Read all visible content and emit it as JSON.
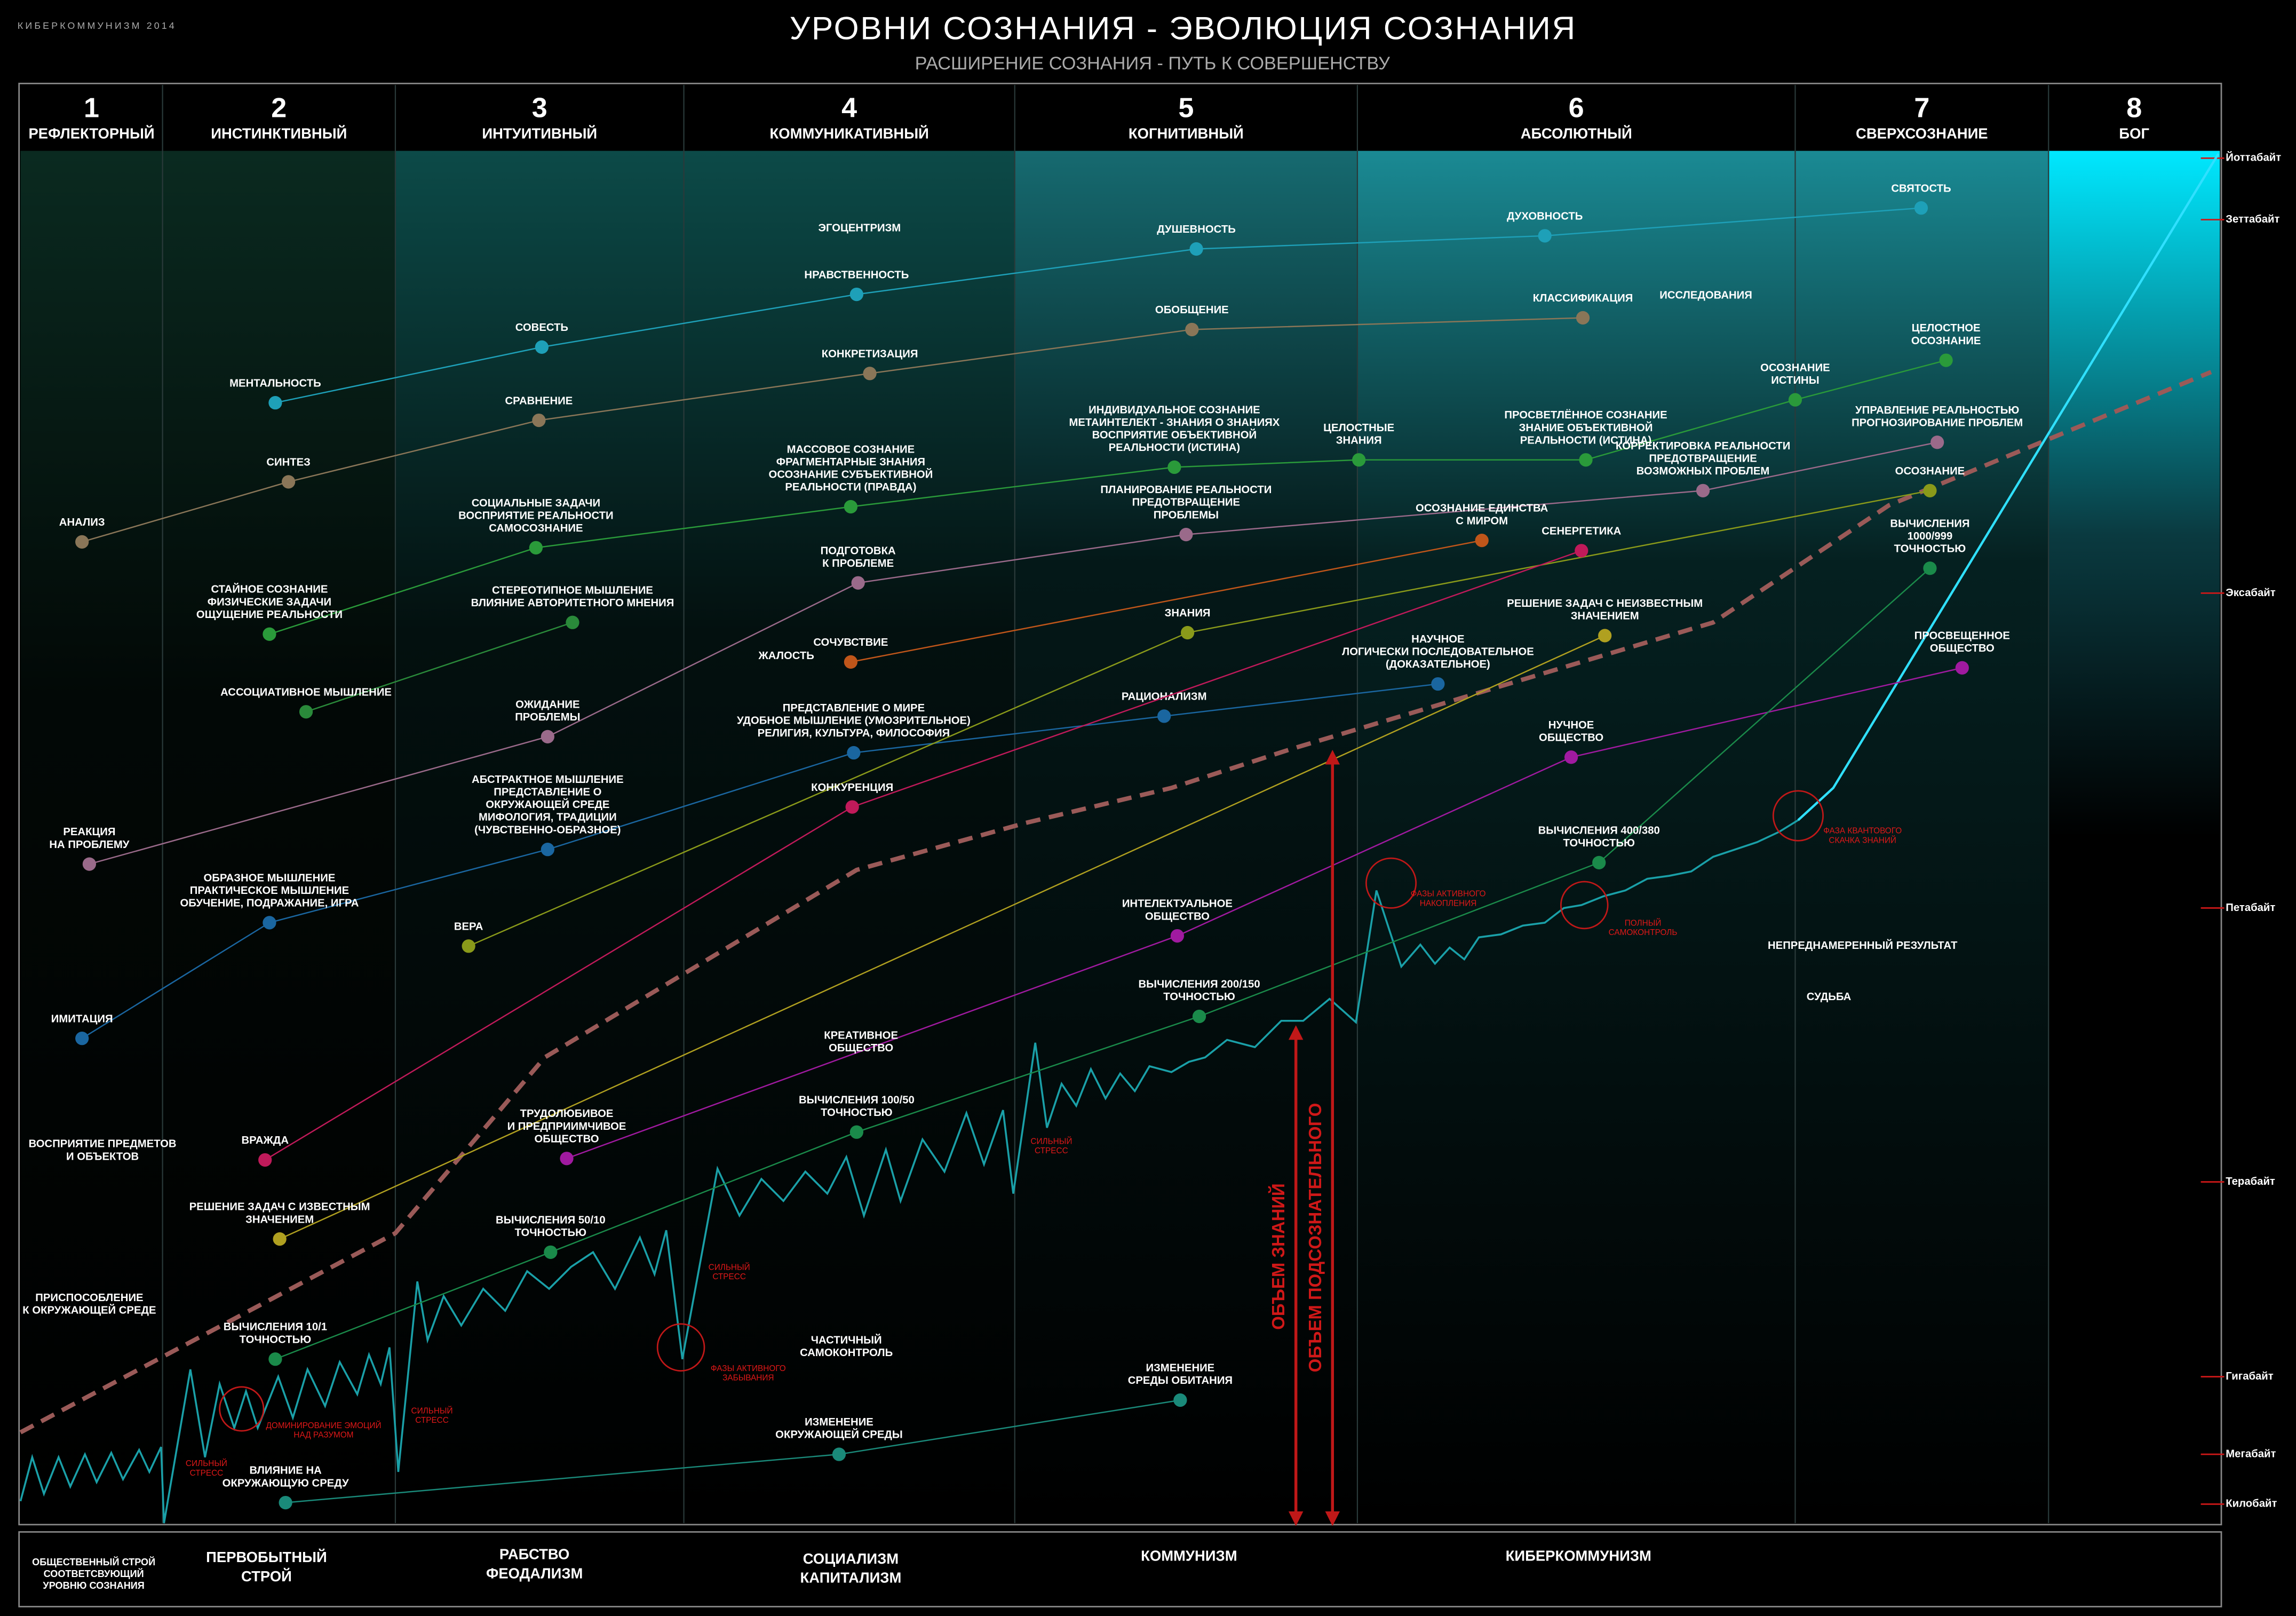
{
  "header": {
    "brand": "КИБЕРКОММУНИЗМ 2014",
    "title": "УРОВНИ СОЗНАНИЯ - ЭВОЛЮЦИЯ СОЗНАНИЯ",
    "subtitle": "РАСШИРЕНИЕ СОЗНАНИЯ - ПУТЬ К СОВЕРШЕНСТВУ"
  },
  "levels": [
    {
      "number": "1",
      "name": "РЕФЛЕКТОРНЫЙ"
    },
    {
      "number": "2",
      "name": "ИНСТИНКТИВНЫЙ"
    },
    {
      "number": "3",
      "name": "ИНТУИТИВНЫЙ"
    },
    {
      "number": "4",
      "name": "КОММУНИКАТИВНЫЙ"
    },
    {
      "number": "5",
      "name": "КОГНИТИВНЫЙ"
    },
    {
      "number": "6",
      "name": "АБСОЛЮТНЫЙ"
    },
    {
      "number": "7",
      "name": "СВЕРХСОЗНАНИЕ"
    },
    {
      "number": "8",
      "name": "БОГ"
    }
  ],
  "scale": [
    "Йоттабайт",
    "Зеттабайт",
    "Эксабайт",
    "Петабайт",
    "Терабайт",
    "Гигабайт",
    "Мегабайт",
    "Килобайт"
  ],
  "chains": [
    {
      "color": "#1ea0b8",
      "nodes": [
        {
          "label": [
            "МЕНТАЛЬНОСТЬ"
          ]
        },
        {
          "label": [
            "СОВЕСТЬ"
          ]
        },
        {
          "label": [
            "НРАВСТВЕННОСТЬ"
          ]
        },
        {
          "label": [
            "ДУШЕВНОСТЬ"
          ]
        },
        {
          "label": [
            "ДУХОВНОСТЬ"
          ]
        },
        {
          "label": [
            "СВЯТОСТЬ"
          ]
        }
      ]
    },
    {
      "color": "#8a7658",
      "nodes": [
        {
          "label": [
            "АНАЛИЗ"
          ]
        },
        {
          "label": [
            "СИНТЕЗ"
          ]
        },
        {
          "label": [
            "СРАВНЕНИЕ"
          ]
        },
        {
          "label": [
            "КОНКРЕТИЗАЦИЯ"
          ]
        },
        {
          "label": [
            "ОБОБЩЕНИЕ"
          ]
        },
        {
          "label": [
            "КЛАССИФИКАЦИЯ"
          ]
        }
      ]
    },
    {
      "color": "#2a9a3a",
      "nodes": [
        {
          "label": [
            "СТАЙНОЕ СОЗНАНИЕ",
            "ФИЗИЧЕСКИЕ ЗАДАЧИ",
            "ОЩУЩЕНИЕ РЕАЛЬНОСТИ"
          ]
        },
        {
          "label": [
            "СОЦИАЛЬНЫЕ ЗАДАЧИ",
            "ВОСПРИЯТИЕ РЕАЛЬНОСТИ",
            "САМОСОЗНАНИЕ"
          ]
        },
        {
          "label": [
            "МАССОВОЕ СОЗНАНИЕ",
            "ФРАГМЕНТАРНЫЕ ЗНАНИЯ",
            "ОСОЗНАНИЕ СУБЪЕКТИВНОЙ",
            "РЕАЛЬНОСТИ (ПРАВДА)"
          ]
        },
        {
          "label": [
            "ИНДИВИДУАЛЬНОЕ СОЗНАНИЕ",
            "МЕТАИНТЕЛЕКТ - ЗНАНИЯ О ЗНАНИЯХ",
            "ВОСПРИЯТИЕ ОБЪЕКТИВНОЙ",
            "РЕАЛЬНОСТИ (ИСТИНА)"
          ]
        },
        {
          "label": [
            "ЦЕЛОСТНЫЕ",
            "ЗНАНИЯ"
          ]
        },
        {
          "label": [
            "ПРОСВЕТЛЁННОЕ СОЗНАНИЕ",
            "ЗНАНИЕ ОБЪЕКТИВНОЙ",
            "РЕАЛЬНОСТИ (ИСТИНА)"
          ]
        },
        {
          "label": [
            "ОСОЗНАНИЕ",
            "ИСТИНЫ"
          ]
        },
        {
          "label": [
            "ЦЕЛОСТНОЕ",
            "ОСОЗНАНИЕ"
          ]
        }
      ]
    },
    {
      "color": "#2a8a3a",
      "nodes": [
        {
          "label": [
            "АССОЦИАТИВНОЕ МЫШЛЕНИЕ"
          ]
        },
        {
          "label": [
            "СТЕРЕОТИПНОЕ  МЫШЛЕНИЕ",
            "ВЛИЯНИЕ АВТОРИТЕТНОГО МНЕНИЯ"
          ]
        }
      ]
    },
    {
      "color": "#9a6a8a",
      "nodes": [
        {
          "label": [
            "РЕАКЦИЯ",
            "НА ПРОБЛЕМУ"
          ]
        },
        {
          "label": [
            "ОЖИДАНИЕ",
            "ПРОБЛЕМЫ"
          ]
        },
        {
          "label": [
            "ПОДГОТОВКА",
            "К ПРОБЛЕМЕ"
          ]
        },
        {
          "label": [
            "ПЛАНИРОВАНИЕ РЕАЛЬНОСТИ",
            "ПРЕДОТВРАЩЕНИЕ",
            "ПРОБЛЕМЫ"
          ]
        },
        {
          "label": [
            "КОРРЕКТИРОВКА РЕАЛЬНОСТИ",
            "ПРЕДОТВРАЩЕНИЕ",
            "ВОЗМОЖНЫХ ПРОБЛЕМ"
          ]
        },
        {
          "label": [
            "УПРАВЛЕНИЕ РЕАЛЬНОСТЬЮ",
            "ПРОГНОЗИРОВАНИЕ ПРОБЛЕМ"
          ]
        }
      ]
    },
    {
      "color": "#c0561a",
      "nodes": [
        {
          "label": [
            "СОЧУВСТВИЕ"
          ]
        },
        {
          "label": [
            "ОСОЗНАНИЕ ЕДИНСТВА",
            "С МИРОМ"
          ]
        }
      ]
    },
    {
      "color": "#1a66a0",
      "nodes": [
        {
          "label": [
            "ИМИТАЦИЯ"
          ]
        },
        {
          "label": [
            "ОБРАЗНОЕ МЫШЛЕНИЕ",
            "ПРАКТИЧЕСКОЕ МЫШЛЕНИЕ",
            "ОБУЧЕНИЕ, ПОДРАЖАНИЕ, ИГРА"
          ]
        },
        {
          "label": [
            "АБСТРАКТНОЕ МЫШЛЕНИЕ",
            "ПРЕДСТАВЛЕНИЕ О",
            "ОКРУЖАЮЩЕЙ СРЕДЕ",
            "МИФОЛОГИЯ, ТРАДИЦИИ",
            "(ЧУВСТВЕННО-ОБРАЗНОЕ)"
          ]
        },
        {
          "label": [
            "ПРЕДСТАВЛЕНИЕ О МИРЕ",
            "УДОБНОЕ МЫШЛЕНИЕ (УМОЗРИТЕЛЬНОЕ)",
            "РЕЛИГИЯ, КУЛЬТУРА, ФИЛОСОФИЯ"
          ]
        },
        {
          "label": [
            "РАЦИОНАЛИЗМ"
          ]
        },
        {
          "label": [
            "НАУЧНОЕ",
            "ЛОГИЧЕСКИ ПОСЛЕДОВАТЕЛЬНОЕ",
            "(ДОКАЗАТЕЛЬНОЕ)"
          ]
        }
      ]
    },
    {
      "color": "#8a9a1a",
      "nodes": [
        {
          "label": [
            "ВЕРА"
          ]
        },
        {
          "label": [
            "ЗНАНИЯ"
          ]
        },
        {
          "label": [
            "ОСОЗНАНИЕ"
          ]
        }
      ]
    },
    {
      "color": "#b0a020",
      "nodes": [
        {
          "label": [
            "РЕШЕНИЕ ЗАДАЧ С ИЗВЕСТНЫМ",
            "ЗНАЧЕНИЕМ"
          ]
        },
        {
          "label": [
            "РЕШЕНИЕ ЗАДАЧ С НЕИЗВЕСТНЫМ",
            "ЗНАЧЕНИЕМ"
          ]
        }
      ]
    },
    {
      "color": "#c01a5a",
      "nodes": [
        {
          "label": [
            "ВРАЖДА"
          ]
        },
        {
          "label": [
            "КОНКУРЕНЦИЯ"
          ]
        },
        {
          "label": [
            "СЕНЕРГЕТИКА"
          ]
        }
      ]
    },
    {
      "color": "#a01aa0",
      "nodes": [
        {
          "label": [
            "ТРУДОЛЮБИВОЕ",
            "И ПРЕДПРИИМЧИВОЕ",
            "ОБЩЕСТВО"
          ]
        },
        {
          "label": [
            "ИНТЕЛЕКТУАЛЬНОЕ",
            "ОБЩЕСТВО"
          ]
        },
        {
          "label": [
            "НУЧНОЕ",
            "ОБЩЕСТВО"
          ]
        },
        {
          "label": [
            "ПРОСВЕЩЕННОЕ",
            "ОБЩЕСТВО"
          ]
        }
      ]
    },
    {
      "color": "#1a8a4a",
      "nodes": [
        {
          "label": [
            "ВЫЧИСЛЕНИЯ 10/1",
            "ТОЧНОСТЬЮ"
          ]
        },
        {
          "label": [
            "ВЫЧИСЛЕНИЯ 50/10",
            "ТОЧНОСТЬЮ"
          ]
        },
        {
          "label": [
            "ВЫЧИСЛЕНИЯ 100/50",
            "ТОЧНОСТЬЮ"
          ]
        },
        {
          "label": [
            "ВЫЧИСЛЕНИЯ 200/150",
            "ТОЧНОСТЬЮ"
          ]
        },
        {
          "label": [
            "ВЫЧИСЛЕНИЯ 400/380",
            "ТОЧНОСТЬЮ"
          ]
        },
        {
          "label": [
            "ВЫЧИСЛЕНИЯ",
            "1000/999",
            "ТОЧНОСТЬЮ"
          ]
        }
      ]
    },
    {
      "color": "#1a8a7a",
      "nodes": [
        {
          "label": [
            "ВЛИЯНИЕ НА",
            "ОКРУЖАЮЩУЮ СРЕДУ"
          ]
        },
        {
          "label": [
            "ИЗМЕНЕНИЕ",
            "ОКРУЖАЮЩЕЙ СРЕДЫ"
          ]
        },
        {
          "label": [
            "ИЗМЕНЕНИЕ",
            "СРЕДЫ ОБИТАНИЯ"
          ]
        }
      ]
    }
  ],
  "labels": [
    {
      "lines": [
        "ЭГОЦЕНТРИЗМ"
      ]
    },
    {
      "lines": [
        "ИССЛЕДОВАНИЯ"
      ]
    },
    {
      "lines": [
        "ЖАЛОСТЬ"
      ]
    },
    {
      "lines": [
        "КРЕАТИВНОЕ",
        "ОБЩЕСТВО"
      ]
    },
    {
      "lines": [
        "ВОСПРИЯТИЕ ПРЕДМЕТОВ",
        "И ОБЪЕКТОВ"
      ]
    },
    {
      "lines": [
        "ПРИСПОСОБЛЕНИЕ",
        "К ОКРУЖАЮЩЕЙ СРЕДЕ"
      ]
    },
    {
      "lines": [
        "ЧАСТИЧНЫЙ",
        "САМОКОНТРОЛЬ"
      ]
    },
    {
      "lines": [
        "НЕПРЕДНАМЕРЕННЫЙ РЕЗУЛЬТАТ"
      ]
    },
    {
      "lines": [
        "СУДЬБА"
      ]
    }
  ],
  "annotations": [
    {
      "lines": [
        "СИЛЬНЫЙ",
        "СТРЕСС"
      ]
    },
    {
      "lines": [
        "ДОМИНИРОВАНИЕ ЭМОЦИЙ",
        "НАД РАЗУМОМ"
      ]
    },
    {
      "lines": [
        "СИЛЬНЫЙ",
        "СТРЕСС"
      ]
    },
    {
      "lines": [
        "СИЛЬНЫЙ",
        "СТРЕСС"
      ]
    },
    {
      "lines": [
        "ФАЗЫ АКТИВНОГО",
        "ЗАБЫВАНИЯ"
      ]
    },
    {
      "lines": [
        "СИЛЬНЫЙ",
        "СТРЕСС"
      ]
    },
    {
      "lines": [
        "ФАЗЫ АКТИВНОГО",
        "НАКОПЛЕНИЯ"
      ]
    },
    {
      "lines": [
        "ПОЛНЫЙ",
        "САМОКОНТРОЛЬ"
      ]
    },
    {
      "lines": [
        "ФАЗА КВАНТОВОГО",
        "СКАЧКА ЗНАНИЙ"
      ]
    }
  ],
  "arrows": [
    "ОБЪЕМ ЗНАНИЙ",
    "ОБЪЕМ ПОДСОЗНАТЕЛЬНОГО"
  ],
  "eras": [
    {
      "lines": [
        "ОБЩЕСТВЕННЫЙ СТРОЙ",
        "СООТВЕТСВУЮЩИЙ",
        "УРОВНЮ СОЗНАНИЯ"
      ]
    },
    {
      "lines": [
        "ПЕРВОБЫТНЫЙ",
        "СТРОЙ"
      ]
    },
    {
      "lines": [
        "РАБСТВО",
        "ФЕОДАЛИЗМ"
      ]
    },
    {
      "lines": [
        "СОЦИАЛИЗМ",
        "КАПИТАЛИЗМ"
      ]
    },
    {
      "lines": [
        "КОММУНИЗМ"
      ]
    },
    {
      "lines": [
        "КИБЕРКОММУНИЗМ"
      ]
    }
  ]
}
